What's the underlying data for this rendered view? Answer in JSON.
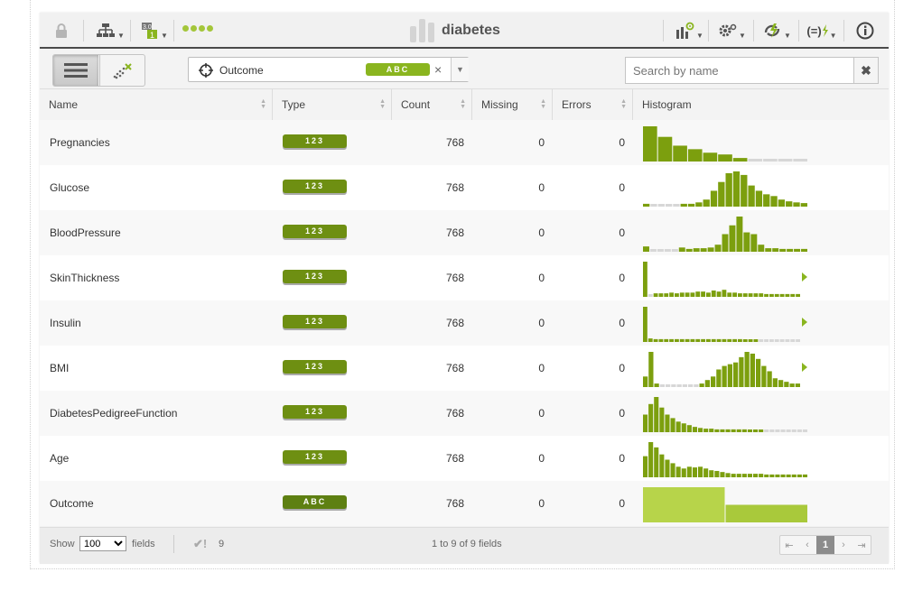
{
  "toolbar": {
    "title": "diabetes",
    "icons": [
      "lock-icon",
      "model-tree-icon",
      "dataset-numbers-icon",
      "status-dots-icon",
      "charts-icon",
      "settings-icon",
      "bolt-icon",
      "formula-icon",
      "info-icon"
    ]
  },
  "objective": {
    "label": "Outcome",
    "type_badge": "ABC",
    "clear": "×",
    "dropdown": "▼"
  },
  "search": {
    "placeholder": "Search by name",
    "clear": "✖"
  },
  "columns": {
    "name": "Name",
    "type": "Type",
    "count": "Count",
    "missing": "Missing",
    "errors": "Errors",
    "histogram": "Histogram"
  },
  "rows": [
    {
      "name": "Pregnancies",
      "type": "123",
      "count": "768",
      "missing": "0",
      "errors": "0"
    },
    {
      "name": "Glucose",
      "type": "123",
      "count": "768",
      "missing": "0",
      "errors": "0"
    },
    {
      "name": "BloodPressure",
      "type": "123",
      "count": "768",
      "missing": "0",
      "errors": "0"
    },
    {
      "name": "SkinThickness",
      "type": "123",
      "count": "768",
      "missing": "0",
      "errors": "0"
    },
    {
      "name": "Insulin",
      "type": "123",
      "count": "768",
      "missing": "0",
      "errors": "0"
    },
    {
      "name": "BMI",
      "type": "123",
      "count": "768",
      "missing": "0",
      "errors": "0"
    },
    {
      "name": "DiabetesPedigreeFunction",
      "type": "123",
      "count": "768",
      "missing": "0",
      "errors": "0"
    },
    {
      "name": "Age",
      "type": "123",
      "count": "768",
      "missing": "0",
      "errors": "0"
    },
    {
      "name": "Outcome",
      "type": "ABC",
      "count": "768",
      "missing": "0",
      "errors": "0"
    }
  ],
  "histograms": [
    {
      "bars": [
        1.0,
        0.7,
        0.45,
        0.35,
        0.25,
        0.2,
        0.1,
        0.05,
        0.05,
        0.05,
        0.05
      ],
      "more": false
    },
    {
      "bars": [
        0.08,
        0.05,
        0.05,
        0.05,
        0.05,
        0.08,
        0.08,
        0.12,
        0.2,
        0.45,
        0.7,
        0.95,
        1.0,
        0.9,
        0.6,
        0.45,
        0.35,
        0.3,
        0.2,
        0.15,
        0.12,
        0.1
      ],
      "more": false
    },
    {
      "bars": [
        0.15,
        0.05,
        0.05,
        0.05,
        0.05,
        0.12,
        0.08,
        0.1,
        0.1,
        0.12,
        0.2,
        0.5,
        0.75,
        1.0,
        0.55,
        0.5,
        0.2,
        0.1,
        0.1,
        0.08,
        0.08,
        0.08,
        0.08
      ],
      "more": false
    },
    {
      "bars": [
        1.0,
        0.05,
        0.1,
        0.1,
        0.1,
        0.12,
        0.1,
        0.12,
        0.12,
        0.12,
        0.15,
        0.15,
        0.12,
        0.18,
        0.15,
        0.2,
        0.12,
        0.12,
        0.1,
        0.1,
        0.1,
        0.1,
        0.1,
        0.08,
        0.08,
        0.08,
        0.08,
        0.08,
        0.08,
        0.08
      ],
      "more": true
    },
    {
      "bars": [
        1.0,
        0.1,
        0.08,
        0.08,
        0.08,
        0.08,
        0.08,
        0.08,
        0.08,
        0.08,
        0.08,
        0.08,
        0.08,
        0.08,
        0.08,
        0.08,
        0.08,
        0.08,
        0.08,
        0.06,
        0.06,
        0.06,
        0.05,
        0.05,
        0.05,
        0.05,
        0.05,
        0.05,
        0.05,
        0.05
      ],
      "more": true
    },
    {
      "bars": [
        0.3,
        1.0,
        0.1,
        0.05,
        0.05,
        0.05,
        0.05,
        0.05,
        0.05,
        0.05,
        0.1,
        0.2,
        0.3,
        0.5,
        0.6,
        0.65,
        0.7,
        0.85,
        1.0,
        0.95,
        0.8,
        0.6,
        0.45,
        0.25,
        0.2,
        0.15,
        0.1,
        0.1
      ],
      "more": true
    },
    {
      "bars": [
        0.5,
        0.8,
        1.0,
        0.7,
        0.5,
        0.4,
        0.3,
        0.25,
        0.2,
        0.15,
        0.12,
        0.1,
        0.1,
        0.08,
        0.08,
        0.08,
        0.08,
        0.08,
        0.08,
        0.06,
        0.06,
        0.06,
        0.05,
        0.05,
        0.05,
        0.05,
        0.05,
        0.05,
        0.05,
        0.05
      ],
      "more": false
    },
    {
      "bars": [
        0.6,
        1.0,
        0.85,
        0.65,
        0.5,
        0.4,
        0.3,
        0.25,
        0.3,
        0.28,
        0.3,
        0.25,
        0.2,
        0.18,
        0.15,
        0.12,
        0.1,
        0.1,
        0.1,
        0.1,
        0.1,
        0.1,
        0.08,
        0.08,
        0.08,
        0.08,
        0.08,
        0.08,
        0.08,
        0.08
      ],
      "more": false
    },
    {
      "bars": [
        1.0,
        0.5
      ],
      "more": false,
      "categorical": true
    }
  ],
  "footer": {
    "show_label": "Show",
    "show_value": "100",
    "fields_label": "fields",
    "check_icon": "✔!",
    "check_count": "9",
    "range_text": "1 to 9 of 9 fields",
    "page": "1"
  }
}
